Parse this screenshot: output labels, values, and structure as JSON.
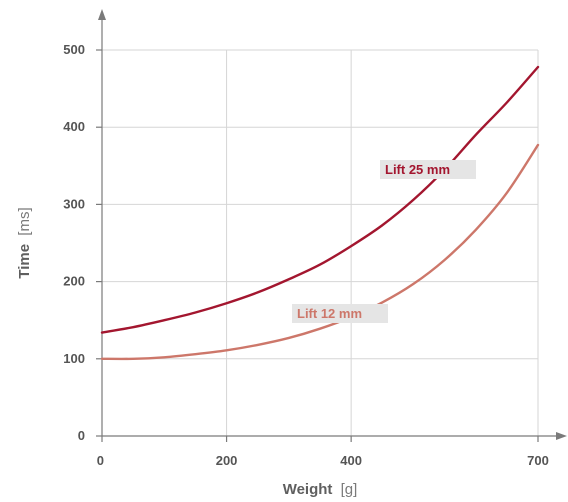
{
  "chart_data": {
    "type": "line",
    "xlabel": "Weight",
    "xunit": "[g]",
    "ylabel": "Time",
    "yunit": "[ms]",
    "xlim": [
      0,
      700
    ],
    "ylim": [
      0,
      500
    ],
    "xticks": [
      0,
      200,
      400,
      700
    ],
    "yticks": [
      0,
      100,
      200,
      300,
      400,
      500
    ],
    "grid": true,
    "series": [
      {
        "name": "Lift 25 mm",
        "color": "#a3162f",
        "label_bg": "#e5e5e5",
        "points": [
          [
            0,
            134
          ],
          [
            50,
            141
          ],
          [
            100,
            150
          ],
          [
            150,
            160
          ],
          [
            200,
            172
          ],
          [
            250,
            186
          ],
          [
            300,
            203
          ],
          [
            350,
            222
          ],
          [
            400,
            246
          ],
          [
            450,
            273
          ],
          [
            500,
            306
          ],
          [
            550,
            345
          ],
          [
            600,
            390
          ],
          [
            650,
            432
          ],
          [
            700,
            478
          ]
        ]
      },
      {
        "name": "Lift 12 mm",
        "color": "#cd776a",
        "label_bg": "#e5e5e5",
        "points": [
          [
            0,
            100
          ],
          [
            50,
            100
          ],
          [
            100,
            102
          ],
          [
            150,
            106
          ],
          [
            200,
            111
          ],
          [
            250,
            118
          ],
          [
            300,
            127
          ],
          [
            350,
            139
          ],
          [
            400,
            154
          ],
          [
            450,
            173
          ],
          [
            500,
            197
          ],
          [
            550,
            228
          ],
          [
            600,
            267
          ],
          [
            650,
            315
          ],
          [
            700,
            377
          ]
        ]
      }
    ]
  }
}
